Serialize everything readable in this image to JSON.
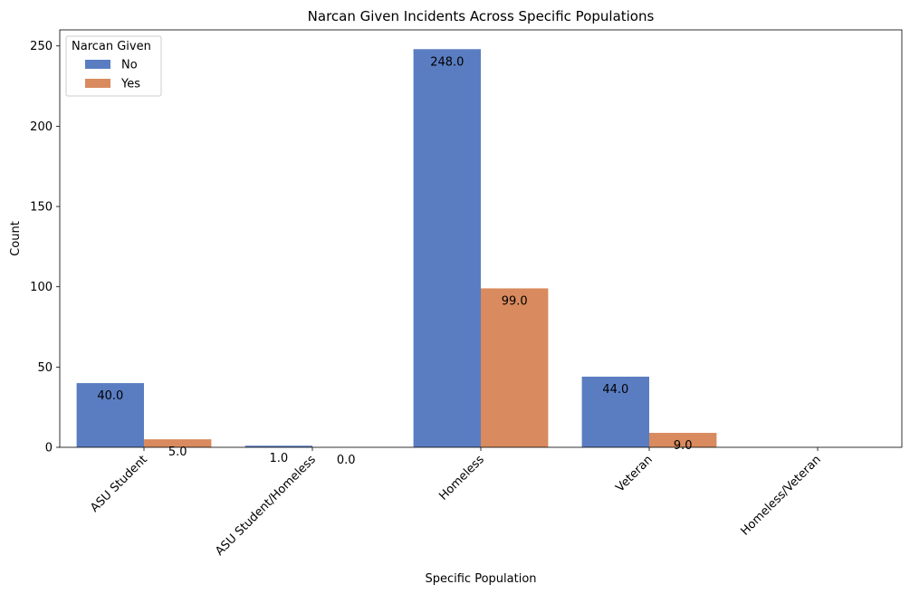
{
  "chart_data": {
    "type": "bar",
    "title": "Narcan Given Incidents Across Specific Populations",
    "xlabel": "Specific Population",
    "ylabel": "Count",
    "categories": [
      "ASU Student",
      "ASU Student/Homeless",
      "Homeless",
      "Veteran",
      "Homeless/Veteran"
    ],
    "series": [
      {
        "name": "No",
        "values": [
          40,
          1,
          248,
          44,
          null
        ],
        "labels": [
          "40.0",
          "1.0",
          "248.0",
          "44.0",
          ""
        ],
        "color": "#5a7dc2"
      },
      {
        "name": "Yes",
        "values": [
          5,
          0,
          99,
          9,
          null
        ],
        "labels": [
          "5.0",
          "0.0",
          "99.0",
          "9.0",
          ""
        ],
        "color": "#d98a5e"
      }
    ],
    "ylim": [
      0,
      260
    ],
    "yticks": [
      0,
      50,
      100,
      150,
      200,
      250
    ],
    "legend": {
      "title": "Narcan Given",
      "placement": "top-left"
    },
    "grid": false
  }
}
